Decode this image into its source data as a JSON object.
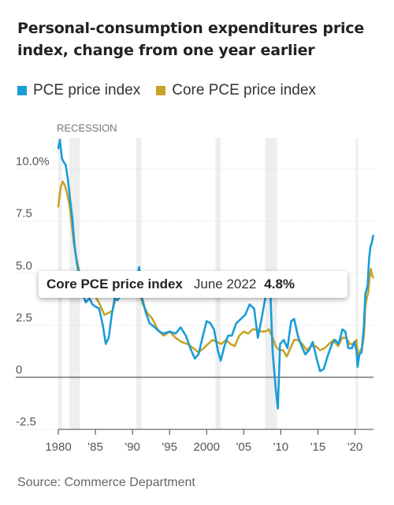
{
  "title_lines": [
    "Personal-consumption expenditures price",
    "index, change from one year earlier"
  ],
  "source": "Source: Commerce Department",
  "colors": {
    "pce": "#1a9cd8",
    "core": "#c9a227",
    "recession": "#eeeeee",
    "grid": "#d8d8d8"
  },
  "tooltip": {
    "series": "Core PCE price index",
    "date": "June 2022",
    "value": "4.8%"
  },
  "chart_data": {
    "type": "line",
    "legend_position": "top-left",
    "recession_label": "RECESSION",
    "recessions": [
      [
        1980.0,
        1980.5
      ],
      [
        1981.5,
        1982.9
      ],
      [
        1990.5,
        1991.2
      ],
      [
        2001.2,
        2001.9
      ],
      [
        2007.9,
        2009.5
      ],
      [
        2020.1,
        2020.4
      ]
    ],
    "xlim": [
      1980,
      2022.5
    ],
    "ylim": [
      -2.5,
      11.5
    ],
    "ticks_y": [
      {
        "v": 10,
        "label": "10.0%"
      },
      {
        "v": 7.5,
        "label": "7.5"
      },
      {
        "v": 5,
        "label": "5.0"
      },
      {
        "v": 2.5,
        "label": "2.5"
      },
      {
        "v": 0,
        "label": "0"
      },
      {
        "v": -2.5,
        "label": "-2.5"
      }
    ],
    "ticks_x": [
      {
        "v": 1980,
        "label": "1980"
      },
      {
        "v": 1985,
        "label": "'85"
      },
      {
        "v": 1990,
        "label": "'90"
      },
      {
        "v": 1995,
        "label": "'95"
      },
      {
        "v": 2000,
        "label": "2000"
      },
      {
        "v": 2005,
        "label": "'05"
      },
      {
        "v": 2010,
        "label": "'10"
      },
      {
        "v": 2015,
        "label": "'15"
      },
      {
        "v": 2020,
        "label": "'20"
      }
    ],
    "series": [
      {
        "name": "PCE price index",
        "color": "#1a9cd8",
        "points": [
          [
            1980.0,
            11.0
          ],
          [
            1980.2,
            11.4
          ],
          [
            1980.5,
            10.5
          ],
          [
            1980.8,
            10.3
          ],
          [
            1981.0,
            10.2
          ],
          [
            1981.3,
            9.5
          ],
          [
            1981.6,
            8.5
          ],
          [
            1981.9,
            7.6
          ],
          [
            1982.2,
            6.3
          ],
          [
            1982.5,
            5.5
          ],
          [
            1982.9,
            4.7
          ],
          [
            1983.3,
            4.0
          ],
          [
            1983.7,
            3.6
          ],
          [
            1984.2,
            3.8
          ],
          [
            1984.6,
            3.5
          ],
          [
            1985.0,
            3.4
          ],
          [
            1985.5,
            3.3
          ],
          [
            1986.0,
            2.5
          ],
          [
            1986.4,
            1.6
          ],
          [
            1986.8,
            1.9
          ],
          [
            1987.2,
            3.0
          ],
          [
            1987.6,
            3.8
          ],
          [
            1988.0,
            3.7
          ],
          [
            1988.5,
            4.0
          ],
          [
            1989.0,
            4.5
          ],
          [
            1989.5,
            4.4
          ],
          [
            1990.0,
            4.5
          ],
          [
            1990.6,
            4.8
          ],
          [
            1990.9,
            5.3
          ],
          [
            1991.3,
            3.8
          ],
          [
            1991.8,
            3.1
          ],
          [
            1992.3,
            2.6
          ],
          [
            1993.0,
            2.4
          ],
          [
            1993.6,
            2.2
          ],
          [
            1994.2,
            2.1
          ],
          [
            1995.0,
            2.2
          ],
          [
            1995.8,
            2.1
          ],
          [
            1996.5,
            2.4
          ],
          [
            1997.2,
            2.0
          ],
          [
            1997.8,
            1.4
          ],
          [
            1998.4,
            0.9
          ],
          [
            1998.9,
            1.1
          ],
          [
            1999.5,
            2.0
          ],
          [
            2000.0,
            2.7
          ],
          [
            2000.5,
            2.6
          ],
          [
            2001.0,
            2.3
          ],
          [
            2001.5,
            1.3
          ],
          [
            2001.9,
            0.8
          ],
          [
            2002.4,
            1.5
          ],
          [
            2002.9,
            2.0
          ],
          [
            2003.4,
            2.0
          ],
          [
            2004.0,
            2.6
          ],
          [
            2004.6,
            2.8
          ],
          [
            2005.2,
            3.0
          ],
          [
            2005.8,
            3.5
          ],
          [
            2006.4,
            3.3
          ],
          [
            2006.9,
            1.9
          ],
          [
            2007.4,
            2.8
          ],
          [
            2007.9,
            3.8
          ],
          [
            2008.3,
            4.2
          ],
          [
            2008.6,
            4.0
          ],
          [
            2008.9,
            1.2
          ],
          [
            2009.3,
            -0.5
          ],
          [
            2009.6,
            -1.5
          ],
          [
            2009.9,
            1.6
          ],
          [
            2010.4,
            1.8
          ],
          [
            2010.9,
            1.4
          ],
          [
            2011.4,
            2.7
          ],
          [
            2011.8,
            2.8
          ],
          [
            2012.3,
            2.0
          ],
          [
            2012.8,
            1.5
          ],
          [
            2013.3,
            1.1
          ],
          [
            2013.8,
            1.3
          ],
          [
            2014.3,
            1.7
          ],
          [
            2014.9,
            0.8
          ],
          [
            2015.3,
            0.3
          ],
          [
            2015.8,
            0.4
          ],
          [
            2016.3,
            1.0
          ],
          [
            2016.9,
            1.6
          ],
          [
            2017.3,
            1.8
          ],
          [
            2017.8,
            1.6
          ],
          [
            2018.3,
            2.3
          ],
          [
            2018.7,
            2.2
          ],
          [
            2019.1,
            1.4
          ],
          [
            2019.6,
            1.4
          ],
          [
            2019.9,
            1.7
          ],
          [
            2020.2,
            1.3
          ],
          [
            2020.35,
            0.5
          ],
          [
            2020.6,
            1.1
          ],
          [
            2020.9,
            1.2
          ],
          [
            2021.2,
            2.5
          ],
          [
            2021.4,
            4.0
          ],
          [
            2021.7,
            4.4
          ],
          [
            2021.9,
            5.7
          ],
          [
            2022.1,
            6.3
          ],
          [
            2022.25,
            6.4
          ],
          [
            2022.45,
            6.8
          ]
        ]
      },
      {
        "name": "Core PCE price index",
        "color": "#c9a227",
        "points": [
          [
            1980.0,
            8.2
          ],
          [
            1980.3,
            9.1
          ],
          [
            1980.6,
            9.4
          ],
          [
            1980.9,
            9.2
          ],
          [
            1981.2,
            8.8
          ],
          [
            1981.5,
            8.3
          ],
          [
            1981.8,
            7.4
          ],
          [
            1982.1,
            6.4
          ],
          [
            1982.5,
            5.6
          ],
          [
            1982.9,
            5.0
          ],
          [
            1983.4,
            4.3
          ],
          [
            1983.9,
            4.1
          ],
          [
            1984.4,
            4.0
          ],
          [
            1985.0,
            3.9
          ],
          [
            1985.6,
            3.5
          ],
          [
            1986.2,
            3.0
          ],
          [
            1986.8,
            3.1
          ],
          [
            1987.3,
            3.2
          ],
          [
            1987.8,
            3.9
          ],
          [
            1988.4,
            4.2
          ],
          [
            1989.0,
            4.2
          ],
          [
            1989.6,
            4.0
          ],
          [
            1990.2,
            4.1
          ],
          [
            1990.8,
            4.3
          ],
          [
            1991.4,
            3.5
          ],
          [
            1992.0,
            3.1
          ],
          [
            1992.7,
            2.8
          ],
          [
            1993.4,
            2.3
          ],
          [
            1994.2,
            2.0
          ],
          [
            1995.0,
            2.2
          ],
          [
            1995.8,
            1.9
          ],
          [
            1996.6,
            1.7
          ],
          [
            1997.4,
            1.6
          ],
          [
            1998.2,
            1.4
          ],
          [
            1998.9,
            1.2
          ],
          [
            1999.6,
            1.4
          ],
          [
            2000.2,
            1.6
          ],
          [
            2000.8,
            1.8
          ],
          [
            2001.4,
            1.7
          ],
          [
            2002.0,
            1.6
          ],
          [
            2002.6,
            1.8
          ],
          [
            2003.2,
            1.6
          ],
          [
            2003.8,
            1.5
          ],
          [
            2004.4,
            2.0
          ],
          [
            2005.0,
            2.2
          ],
          [
            2005.6,
            2.1
          ],
          [
            2006.2,
            2.3
          ],
          [
            2006.8,
            2.3
          ],
          [
            2007.4,
            2.2
          ],
          [
            2007.9,
            2.2
          ],
          [
            2008.4,
            2.3
          ],
          [
            2008.9,
            1.9
          ],
          [
            2009.3,
            1.5
          ],
          [
            2009.8,
            1.3
          ],
          [
            2010.3,
            1.3
          ],
          [
            2010.8,
            1.0
          ],
          [
            2011.3,
            1.4
          ],
          [
            2011.8,
            1.8
          ],
          [
            2012.3,
            1.8
          ],
          [
            2012.9,
            1.6
          ],
          [
            2013.5,
            1.3
          ],
          [
            2014.1,
            1.5
          ],
          [
            2014.7,
            1.5
          ],
          [
            2015.3,
            1.3
          ],
          [
            2015.9,
            1.4
          ],
          [
            2016.5,
            1.6
          ],
          [
            2017.1,
            1.8
          ],
          [
            2017.7,
            1.5
          ],
          [
            2018.3,
            1.9
          ],
          [
            2018.8,
            1.9
          ],
          [
            2019.3,
            1.6
          ],
          [
            2019.8,
            1.6
          ],
          [
            2020.2,
            1.8
          ],
          [
            2020.4,
            0.9
          ],
          [
            2020.7,
            1.3
          ],
          [
            2020.95,
            1.4
          ],
          [
            2021.2,
            2.0
          ],
          [
            2021.4,
            3.4
          ],
          [
            2021.6,
            3.8
          ],
          [
            2021.8,
            4.1
          ],
          [
            2022.0,
            4.9
          ],
          [
            2022.15,
            5.2
          ],
          [
            2022.3,
            4.9
          ],
          [
            2022.45,
            4.8
          ]
        ]
      }
    ]
  }
}
